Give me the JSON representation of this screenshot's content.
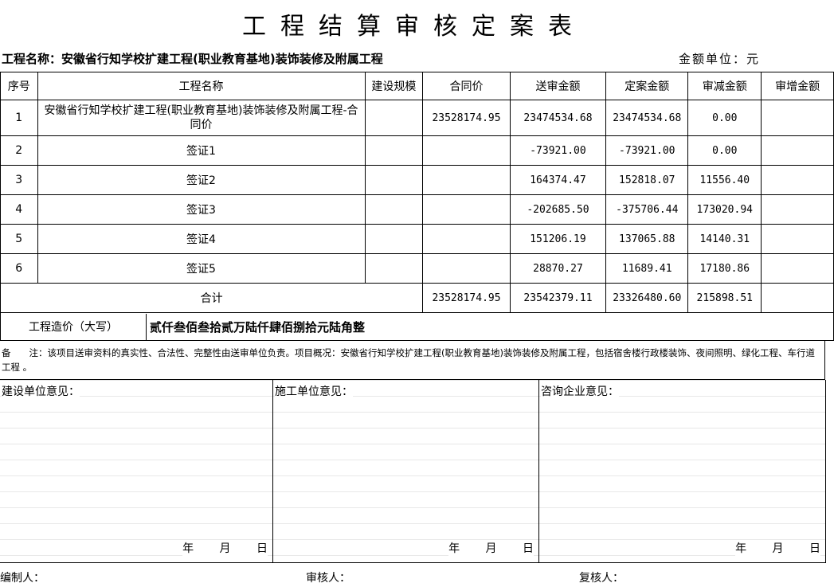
{
  "title": "工程结算审核定案表",
  "project_label": "工程名称：安徽省行知学校扩建工程(职业教育基地)装饰装修及附属工程",
  "unit_label": "金额单位：元",
  "headers": [
    "序号",
    "工程名称",
    "建设规模",
    "合同价",
    "送审金额",
    "定案金额",
    "审减金额",
    "审增金额"
  ],
  "rows": [
    [
      "1",
      "安徽省行知学校扩建工程(职业教育基地)装饰装修及附属工程-合同价",
      "",
      "23528174.95",
      "23474534.68",
      "23474534.68",
      "0.00",
      ""
    ],
    [
      "2",
      "签证1",
      "",
      "",
      "-73921.00",
      "-73921.00",
      "0.00",
      ""
    ],
    [
      "3",
      "签证2",
      "",
      "",
      "164374.47",
      "152818.07",
      "11556.40",
      ""
    ],
    [
      "4",
      "签证3",
      "",
      "",
      "-202685.50",
      "-375706.44",
      "173020.94",
      ""
    ],
    [
      "5",
      "签证4",
      "",
      "",
      "151206.19",
      "137065.88",
      "14140.31",
      ""
    ],
    [
      "6",
      "签证5",
      "",
      "",
      "28870.27",
      "11689.41",
      "17180.86",
      ""
    ]
  ],
  "total": {
    "label": "合计",
    "contract": "23528174.95",
    "submitted": "23542379.11",
    "approved": "23326480.60",
    "reduced": "215898.51",
    "increased": ""
  },
  "capital": {
    "label": "工程造价（大写）",
    "value": "贰仟叁佰叁拾贰万陆仟肆佰捌拾元陆角整"
  },
  "notes": "备　　注：该项目送审资料的真实性、合法性、完整性由送审单位负责。项目概况：安徽省行知学校扩建工程(职业教育基地)装饰装修及附属工程，包括宿舍楼行政楼装饰、夜间照明、绿化工程、车行道工程 。",
  "opinions": [
    {
      "label": "建设单位意见：",
      "date": "年 月 日"
    },
    {
      "label": "施工单位意见：",
      "date": "年 月 日"
    },
    {
      "label": "咨询企业意见：",
      "date": "年 月 日"
    }
  ],
  "footer": {
    "compiler": "编制人：",
    "reviewer": "审核人：",
    "rechecker": "复核人："
  }
}
